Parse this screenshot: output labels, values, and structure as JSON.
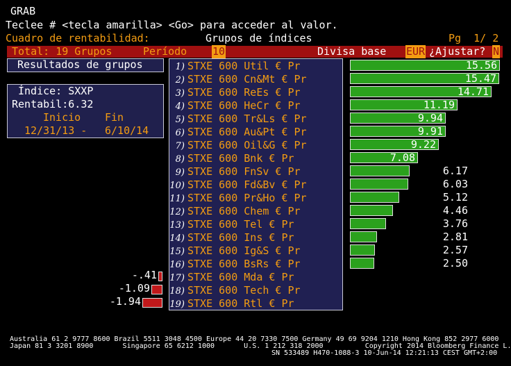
{
  "header": {
    "title": "GRAB",
    "instruction": "Teclee # <tecla amarilla> <Go> para acceder al valor.",
    "screen_name": "Cuadro de rentabilidad:",
    "section": "Grupos de índices",
    "page": "Pg  1/ 2"
  },
  "toolbar": {
    "total": "Total: 19 Grupos",
    "period_label": "Período",
    "period_value": "10",
    "currency_label": "Divisa base",
    "currency_value": "EUR",
    "adjust_label": "¿Ajustar?",
    "adjust_value": "N"
  },
  "results_button": "Resultados de grupos",
  "index_box": {
    "index": "Índice: SXXP",
    "return": "Rentabil:6.32",
    "start_label": "Inicio",
    "end_label": "Fin",
    "start_date": "12/31/13 -",
    "end_date": "6/10/14"
  },
  "groups": [
    {
      "num": "1)",
      "name": "STXE 600 Util € Pr",
      "value": 15.56,
      "label": "15.56"
    },
    {
      "num": "2)",
      "name": "STXE 600 Cn&Mt € Pr",
      "value": 15.47,
      "label": "15.47"
    },
    {
      "num": "3)",
      "name": "STXE 600 ReEs € Pr",
      "value": 14.71,
      "label": "14.71"
    },
    {
      "num": "4)",
      "name": "STXE 600 HeCr € Pr",
      "value": 11.19,
      "label": "11.19"
    },
    {
      "num": "5)",
      "name": "STXE 600 Tr&Ls € Pr",
      "value": 9.94,
      "label": "9.94"
    },
    {
      "num": "6)",
      "name": "STXE 600 Au&Pt € Pr",
      "value": 9.91,
      "label": "9.91"
    },
    {
      "num": "7)",
      "name": "STXE 600 Oil&G € Pr",
      "value": 9.22,
      "label": "9.22"
    },
    {
      "num": "8)",
      "name": "STXE 600 Bnk € Pr",
      "value": 7.08,
      "label": "7.08"
    },
    {
      "num": "9)",
      "name": "STXE 600 FnSv € Pr",
      "value": 6.17,
      "label": "6.17"
    },
    {
      "num": "10)",
      "name": "STXE 600 Fd&Bv € Pr",
      "value": 6.03,
      "label": "6.03"
    },
    {
      "num": "11)",
      "name": "STXE 600 Pr&Ho € Pr",
      "value": 5.12,
      "label": "5.12"
    },
    {
      "num": "12)",
      "name": "STXE 600 Chem € Pr",
      "value": 4.46,
      "label": "4.46"
    },
    {
      "num": "13)",
      "name": "STXE 600 Tel € Pr",
      "value": 3.76,
      "label": "3.76"
    },
    {
      "num": "14)",
      "name": "STXE 600 Ins € Pr",
      "value": 2.81,
      "label": "2.81"
    },
    {
      "num": "15)",
      "name": "STXE 600 Ig&S € Pr",
      "value": 2.57,
      "label": "2.57"
    },
    {
      "num": "16)",
      "name": "STXE 600 BsRs € Pr",
      "value": 2.5,
      "label": "2.50"
    },
    {
      "num": "17)",
      "name": "STXE 600 Mda € Pr",
      "value": -0.41,
      "label": "-.41"
    },
    {
      "num": "18)",
      "name": "STXE 600 Tech € Pr",
      "value": -1.09,
      "label": "-1.09"
    },
    {
      "num": "19)",
      "name": "STXE 600 Rtl € Pr",
      "value": -1.94,
      "label": "-1.94"
    }
  ],
  "colors": {
    "positive_bar": "#2ba11d",
    "negative_bar": "#c0181a",
    "accent": "#f39c12",
    "panel": "#202052"
  },
  "footer": {
    "line1": "Australia 61 2 9777 8600 Brazil 5511 3048 4500 Europe 44 20 7330 7500 Germany 49 69 9204 1210 Hong Kong 852 2977 6000",
    "line2": "Japan 81 3 3201 8900       Singapore 65 6212 1000       U.S. 1 212 318 2000          Copyright 2014 Bloomberg Finance L.P.",
    "line3": "SN 533489 H470-1088-3 10-Jun-14 12:21:13 CEST GMT+2:00"
  }
}
